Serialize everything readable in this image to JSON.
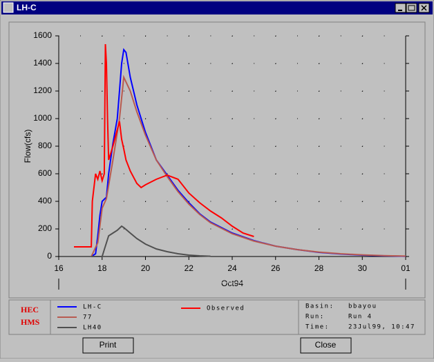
{
  "window": {
    "title": "LH-C"
  },
  "chart_data": {
    "type": "line",
    "y_label": "Flow(cfs)",
    "x_label": "Oct94",
    "xlim": [
      16,
      32
    ],
    "xticks": [
      16,
      18,
      20,
      22,
      24,
      26,
      28,
      30,
      {
        "value": 32,
        "label": "01"
      }
    ],
    "ylim": [
      0,
      1600
    ],
    "yticks": [
      0,
      200,
      400,
      600,
      800,
      1000,
      1200,
      1400,
      1600
    ],
    "grid": true,
    "series": [
      {
        "name": "LH-C",
        "color": "#0000ff",
        "x": [
          17.5,
          17.7,
          17.8,
          17.9,
          18.0,
          18.2,
          18.3,
          18.5,
          18.7,
          18.8,
          18.9,
          19.0,
          19.1,
          19.3,
          19.6,
          20,
          20.5,
          21,
          21.5,
          22,
          22.5,
          23,
          24,
          25,
          26,
          27,
          28,
          29,
          30,
          31,
          32
        ],
        "values": [
          0,
          20,
          150,
          300,
          400,
          430,
          600,
          820,
          1000,
          1200,
          1400,
          1500,
          1480,
          1300,
          1100,
          900,
          700,
          590,
          480,
          390,
          310,
          250,
          170,
          115,
          75,
          50,
          30,
          18,
          10,
          5,
          2
        ]
      },
      {
        "name": "77",
        "color": "#b85a50",
        "x": [
          17.5,
          17.8,
          18.0,
          18.2,
          18.5,
          18.8,
          19.0,
          19.3,
          19.6,
          20,
          20.5,
          21,
          21.5,
          22,
          22.5,
          23,
          24,
          25,
          26,
          27,
          28,
          29,
          30,
          31,
          32
        ],
        "values": [
          0,
          100,
          350,
          420,
          700,
          1000,
          1300,
          1200,
          1050,
          880,
          700,
          580,
          470,
          380,
          305,
          245,
          165,
          112,
          75,
          50,
          32,
          20,
          12,
          6,
          3
        ]
      },
      {
        "name": "LH40",
        "color": "#505050",
        "x": [
          17.5,
          18.0,
          18.1,
          18.3,
          18.5,
          18.7,
          18.9,
          19.0,
          19.3,
          19.6,
          20,
          20.5,
          21,
          21.5,
          22,
          22.5,
          23
        ],
        "values": [
          0,
          0,
          50,
          150,
          170,
          190,
          220,
          210,
          170,
          130,
          90,
          55,
          35,
          20,
          10,
          5,
          2
        ]
      },
      {
        "name": "Observed",
        "color": "#ff0000",
        "x": [
          16.7,
          17.5,
          17.55,
          17.7,
          17.8,
          17.9,
          18.0,
          18.1,
          18.15,
          18.2,
          18.25,
          18.3,
          18.5,
          18.7,
          18.8,
          18.9,
          19.0,
          19.1,
          19.3,
          19.6,
          19.8,
          20,
          20.5,
          21,
          21.5,
          22,
          22.5,
          23,
          23.5,
          24,
          24.5,
          25
        ],
        "values": [
          70,
          70,
          400,
          600,
          560,
          620,
          550,
          600,
          1540,
          1400,
          1000,
          700,
          800,
          920,
          980,
          850,
          780,
          700,
          620,
          530,
          500,
          520,
          560,
          590,
          560,
          460,
          390,
          330,
          280,
          220,
          170,
          145
        ]
      }
    ]
  },
  "logo": [
    "HEC",
    "HMS"
  ],
  "info": [
    [
      "Basin:",
      "bbayou"
    ],
    [
      "Run:",
      "Run 4"
    ],
    [
      "Time:",
      "23Jul99, 10:47"
    ]
  ],
  "buttons": [
    "Print",
    "Close"
  ]
}
